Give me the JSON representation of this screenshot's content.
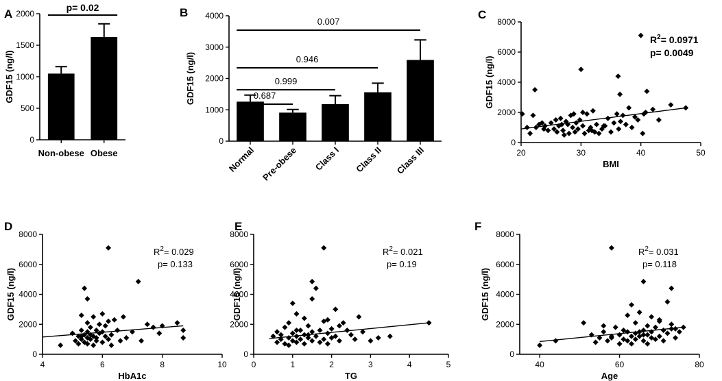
{
  "panels": {
    "A": {
      "label": "A"
    },
    "B": {
      "label": "B"
    },
    "C": {
      "label": "C"
    },
    "D": {
      "label": "D"
    },
    "E": {
      "label": "E"
    },
    "F": {
      "label": "F"
    }
  },
  "chart_data": [
    {
      "id": "A",
      "type": "bar",
      "categories": [
        "Non-obese",
        "Obese"
      ],
      "values": [
        1050,
        1630
      ],
      "errors": [
        110,
        210
      ],
      "ylabel": "GDF15 (ng/l)",
      "xlabel": "",
      "ylim": [
        0,
        2000
      ],
      "yticks": [
        0,
        500,
        1000,
        1500,
        2000
      ],
      "comparisons": [
        {
          "from": 0,
          "to": 1,
          "label": "p= 0.02"
        }
      ]
    },
    {
      "id": "B",
      "type": "bar",
      "categories": [
        "Normal",
        "Pre-obese",
        "Class I",
        "Class II",
        "Class III"
      ],
      "values": [
        1260,
        910,
        1180,
        1560,
        2590
      ],
      "errors": [
        210,
        100,
        270,
        290,
        640
      ],
      "ylabel": "GDF15 (ng/l)",
      "xlabel": "",
      "ylim": [
        0,
        4000
      ],
      "yticks": [
        0,
        1000,
        2000,
        3000,
        4000
      ],
      "comparisons": [
        {
          "from": 0,
          "to": 1,
          "label": "0.687"
        },
        {
          "from": 0,
          "to": 2,
          "label": "0.999"
        },
        {
          "from": 0,
          "to": 3,
          "label": "0.946"
        },
        {
          "from": 0,
          "to": 4,
          "label": "0.007"
        }
      ]
    },
    {
      "id": "C",
      "type": "scatter",
      "xlabel": "BMI",
      "ylabel": "GDF15 (ng/l)",
      "xlim": [
        20,
        50
      ],
      "xticks": [
        20,
        30,
        40,
        50
      ],
      "ylim": [
        0,
        8000
      ],
      "yticks": [
        0,
        2000,
        4000,
        6000,
        8000
      ],
      "r2": "R²= 0.0971",
      "p": "p= 0.0049",
      "fit": {
        "x": [
          20,
          47.5
        ],
        "y": [
          900,
          2300
        ]
      },
      "x": [
        20.2,
        21.5,
        22.0,
        22.5,
        23.0,
        23.5,
        24.0,
        24.5,
        25.0,
        25.5,
        25.8,
        26.0,
        26.3,
        26.6,
        27.0,
        27.2,
        27.5,
        27.8,
        28.0,
        28.3,
        28.6,
        29.0,
        29.2,
        29.5,
        29.8,
        30.0,
        30.3,
        30.6,
        31.0,
        31.3,
        31.6,
        32.0,
        32.3,
        32.6,
        33.0,
        33.5,
        34.0,
        34.5,
        35.0,
        35.5,
        36.0,
        36.3,
        36.6,
        37.0,
        37.5,
        38.0,
        38.5,
        39.0,
        39.5,
        40.0,
        40.3,
        40.5,
        41.0,
        42.0,
        43.0,
        45.0,
        47.5,
        21.0,
        23.8,
        26.8,
        28.8,
        30.3,
        31.8,
        33.8,
        36.2,
        22.3,
        40.8,
        36.5
      ],
      "y": [
        1900,
        600,
        1800,
        1000,
        1200,
        1300,
        1100,
        800,
        1300,
        900,
        1500,
        700,
        1100,
        1600,
        800,
        500,
        1400,
        1200,
        600,
        1800,
        1000,
        700,
        1300,
        900,
        1500,
        4850,
        1100,
        600,
        1900,
        800,
        1000,
        2100,
        700,
        1200,
        600,
        900,
        1100,
        1600,
        700,
        1300,
        1900,
        900,
        1400,
        1800,
        1200,
        2300,
        1000,
        1700,
        1500,
        7100,
        600,
        1900,
        3400,
        2200,
        1500,
        2500,
        2300,
        1000,
        900,
        1200,
        1900,
        2000,
        800,
        1100,
        4400,
        3500,
        2000,
        3200
      ]
    },
    {
      "id": "D",
      "type": "scatter",
      "xlabel": "HbA1c",
      "ylabel": "GDF15 (ng/l)",
      "xlim": [
        4,
        10
      ],
      "xticks": [
        4,
        6,
        8,
        10
      ],
      "ylim": [
        0,
        8000
      ],
      "yticks": [
        0,
        2000,
        4000,
        6000,
        8000
      ],
      "r2": "R²= 0.029",
      "p": "p= 0.133",
      "fit": {
        "x": [
          4,
          8.7
        ],
        "y": [
          1150,
          1900
        ]
      },
      "x": [
        4.6,
        5.0,
        5.1,
        5.2,
        5.2,
        5.3,
        5.3,
        5.3,
        5.4,
        5.4,
        5.4,
        5.5,
        5.5,
        5.5,
        5.5,
        5.6,
        5.6,
        5.6,
        5.7,
        5.7,
        5.7,
        5.8,
        5.8,
        5.8,
        5.9,
        5.9,
        6.0,
        6.0,
        6.0,
        6.1,
        6.1,
        6.2,
        6.2,
        6.3,
        6.3,
        6.4,
        6.5,
        6.6,
        6.7,
        6.8,
        7.0,
        7.2,
        7.3,
        7.5,
        7.7,
        7.9,
        8.0,
        8.5,
        8.7,
        8.7,
        5.3,
        5.5,
        6.2
      ],
      "y": [
        600,
        1400,
        900,
        1200,
        700,
        1600,
        1000,
        2600,
        1300,
        800,
        4400,
        1100,
        1500,
        700,
        2100,
        1800,
        1000,
        1300,
        600,
        1200,
        2500,
        900,
        1600,
        1100,
        1400,
        2000,
        800,
        1500,
        2700,
        1200,
        1900,
        7100,
        1000,
        1300,
        600,
        2300,
        1600,
        900,
        2500,
        1100,
        1500,
        4850,
        900,
        2000,
        1800,
        1400,
        1900,
        2100,
        1600,
        1100,
        1200,
        3700,
        2200
      ]
    },
    {
      "id": "E",
      "type": "scatter",
      "xlabel": "TG",
      "ylabel": "GDF15 (ng/l)",
      "xlim": [
        0,
        5
      ],
      "xticks": [
        0,
        1,
        2,
        3,
        4,
        5
      ],
      "ylim": [
        0,
        8000
      ],
      "yticks": [
        0,
        2000,
        4000,
        6000,
        8000
      ],
      "r2": "R²= 0.021",
      "p": "p= 0.19",
      "fit": {
        "x": [
          0.4,
          4.5
        ],
        "y": [
          1050,
          2100
        ]
      },
      "x": [
        0.5,
        0.6,
        0.6,
        0.7,
        0.7,
        0.8,
        0.8,
        0.9,
        0.9,
        1.0,
        1.0,
        1.0,
        1.1,
        1.1,
        1.1,
        1.2,
        1.2,
        1.3,
        1.3,
        1.3,
        1.4,
        1.4,
        1.5,
        1.5,
        1.5,
        1.6,
        1.6,
        1.7,
        1.7,
        1.8,
        1.8,
        1.8,
        1.9,
        1.9,
        2.0,
        2.0,
        2.1,
        2.1,
        2.2,
        2.3,
        2.4,
        2.5,
        2.6,
        2.7,
        2.8,
        3.0,
        3.2,
        3.5,
        4.5,
        0.9,
        1.1,
        1.4,
        1.5,
        1.9,
        2.2
      ],
      "y": [
        1200,
        800,
        1500,
        1000,
        1300,
        700,
        1800,
        1100,
        600,
        1400,
        900,
        3400,
        1200,
        2700,
        800,
        1600,
        1000,
        1300,
        700,
        2400,
        1100,
        1900,
        900,
        1500,
        4850,
        1200,
        4400,
        800,
        1600,
        7100,
        1000,
        2200,
        1400,
        700,
        1700,
        1100,
        3000,
        1200,
        900,
        2100,
        1600,
        1300,
        1000,
        2500,
        1500,
        900,
        1100,
        1200,
        2100,
        2100,
        1600,
        1300,
        3700,
        2300,
        1900
      ]
    },
    {
      "id": "F",
      "type": "scatter",
      "xlabel": "Age",
      "ylabel": "GDF15 (ng/l)",
      "xlim": [
        35,
        80
      ],
      "xticks": [
        40,
        60,
        80
      ],
      "ylim": [
        0,
        8000
      ],
      "yticks": [
        0,
        2000,
        4000,
        6000,
        8000
      ],
      "r2": "R²= 0.031",
      "p": "p= 0.118",
      "fit": {
        "x": [
          40,
          76
        ],
        "y": [
          850,
          1800
        ]
      },
      "x": [
        40,
        44,
        51,
        53,
        54,
        55,
        56,
        57,
        58,
        58,
        59,
        60,
        60,
        61,
        61,
        62,
        62,
        63,
        63,
        63,
        64,
        64,
        64,
        65,
        65,
        65,
        66,
        66,
        66,
        67,
        67,
        67,
        68,
        68,
        68,
        69,
        69,
        70,
        70,
        71,
        71,
        72,
        72,
        73,
        73,
        74,
        74,
        75,
        76,
        58,
        62,
        66,
        70,
        73,
        56
      ],
      "y": [
        600,
        900,
        2100,
        1300,
        800,
        1100,
        1500,
        900,
        7100,
        1200,
        1800,
        700,
        1300,
        1000,
        1600,
        900,
        2600,
        1200,
        3300,
        700,
        1400,
        1000,
        2100,
        1500,
        1200,
        2800,
        900,
        1600,
        4850,
        1300,
        1900,
        700,
        1100,
        2500,
        1500,
        1800,
        1000,
        1200,
        2300,
        1600,
        900,
        1400,
        3500,
        4400,
        2000,
        1100,
        1700,
        1500,
        1800,
        1100,
        1500,
        1300,
        2200,
        1700,
        1900
      ]
    }
  ]
}
